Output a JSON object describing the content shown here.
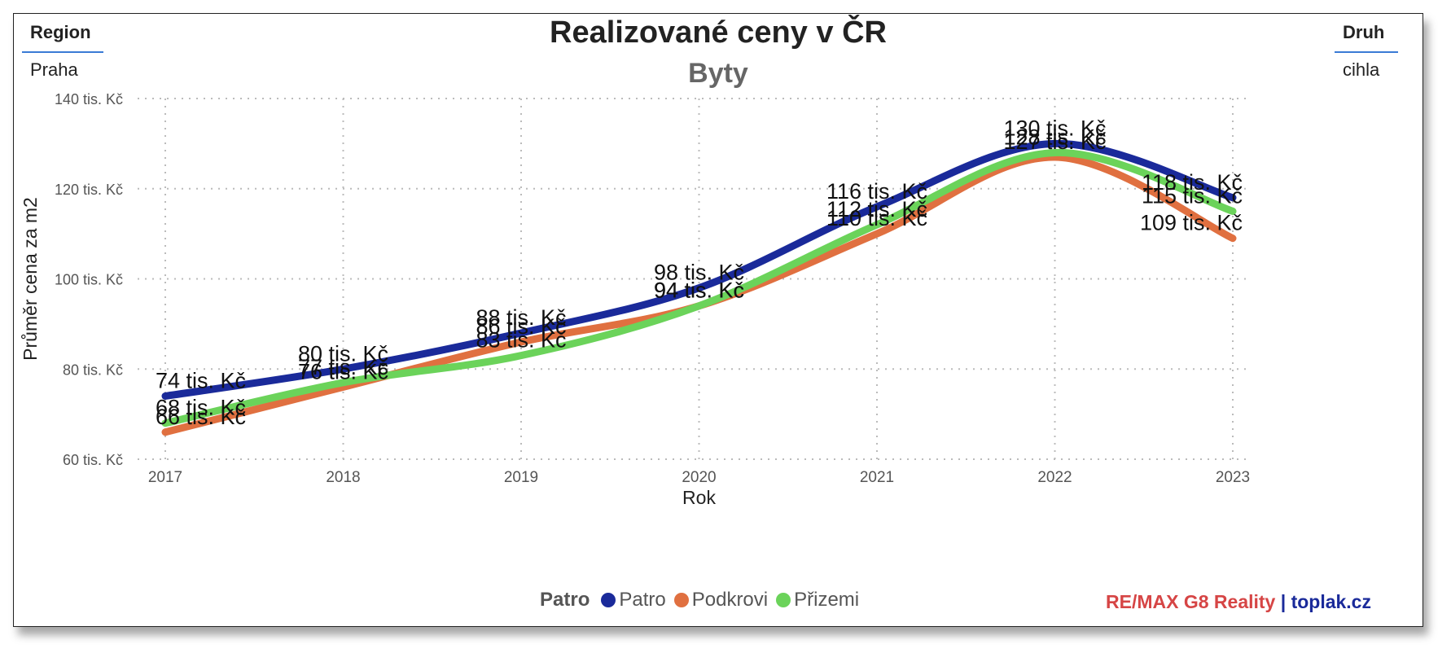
{
  "filters": {
    "region": {
      "label": "Region",
      "value": "Praha"
    },
    "druh": {
      "label": "Druh",
      "value": "cihla"
    }
  },
  "legend": {
    "title": "Patro",
    "items": [
      "Patro",
      "Podkrovi",
      "Přizemi"
    ]
  },
  "brand": {
    "remax": "RE/MAX G8 Reality",
    "sep": " | ",
    "site": "toplak.cz"
  },
  "colors": {
    "patro": "#1a2a9a",
    "podkrovi": "#e07040",
    "prizemi": "#6bd35a",
    "brand_red": "#d64545",
    "brand_blue": "#1a2a9a"
  },
  "chart_data": {
    "type": "line",
    "title": "Realizované ceny v ČR",
    "subtitle": "Byty",
    "xlabel": "Rok",
    "ylabel": "Průměr cena za m2",
    "x": [
      2017,
      2018,
      2019,
      2020,
      2021,
      2022,
      2023
    ],
    "x_ticks": [
      "2017",
      "2018",
      "2019",
      "2020",
      "2021",
      "2022",
      "2023"
    ],
    "y_ticks": [
      "60 tis. Kč",
      "80 tis. Kč",
      "100 tis. Kč",
      "120 tis. Kč",
      "140 tis. Kč"
    ],
    "ylim": [
      60,
      140
    ],
    "grid": true,
    "series": [
      {
        "name": "Patro",
        "values": [
          74,
          80,
          88,
          98,
          116,
          130,
          118
        ],
        "labels": [
          "74 tis. Kč",
          "80 tis. Kč",
          "88 tis. Kč",
          "98 tis. Kč",
          "116 tis. Kč",
          "130 tis. Kč",
          "118 tis. Kč"
        ]
      },
      {
        "name": "Podkrovi",
        "values": [
          66,
          76,
          86,
          94,
          110,
          127,
          109
        ],
        "labels": [
          "66 tis. Kč",
          "76 tis. Kč",
          "86 tis. Kč",
          "94 tis. Kč",
          "110 tis. Kč",
          "127 tis. Kč",
          "109 tis. Kč"
        ]
      },
      {
        "name": "Přizemi",
        "values": [
          68,
          77,
          83,
          94,
          112,
          128,
          115
        ],
        "labels": [
          "68 tis. Kč",
          "77 tis. Kč",
          "83 tis. Kč",
          "94 tis. Kč",
          "112 tis. Kč",
          "128 tis. Kč",
          "115 tis. Kč"
        ]
      }
    ]
  }
}
